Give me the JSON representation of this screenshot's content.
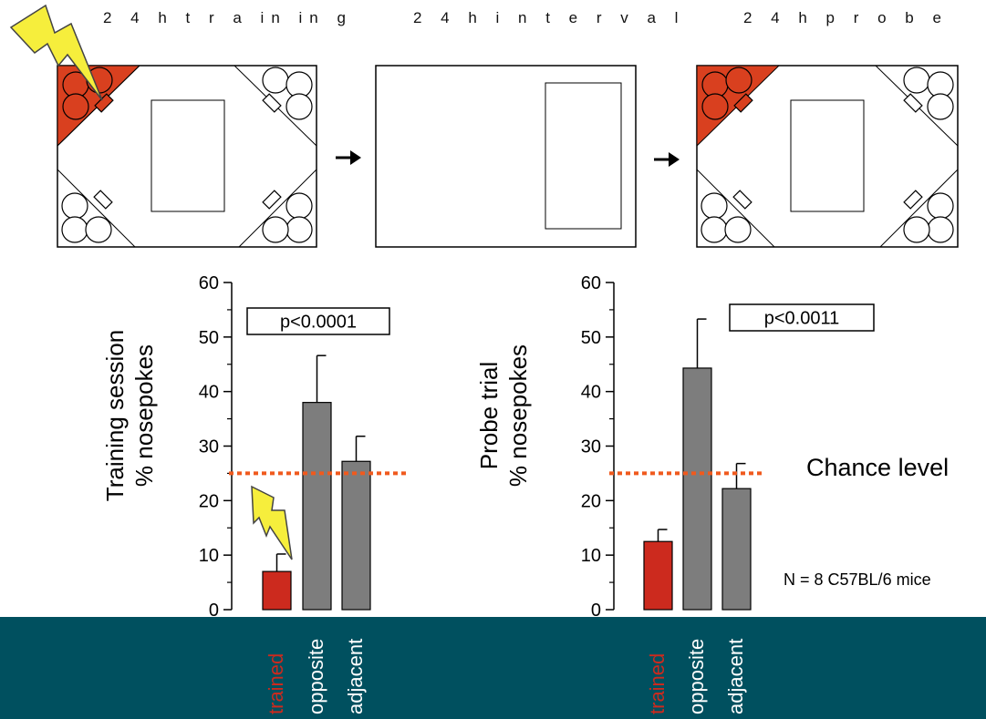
{
  "stages": {
    "training": "2 4 h  t r a in in g",
    "interval": "2 4 h  i n t e r v a l",
    "probe": "2 4 h  p r o b e"
  },
  "colors": {
    "trained": "#cc2a1e",
    "other": "#7d7d7d",
    "chance_line": "#f05a1e",
    "corner": "#d9401f",
    "bolt": "#f6ee3c",
    "footer": "#00505f"
  },
  "chart_data": [
    {
      "type": "bar",
      "title": "",
      "ylabel_line1": "Training session",
      "ylabel_line2": "% nosepokes",
      "categories": [
        "trained",
        "opposite",
        "adjacent"
      ],
      "values": [
        7,
        38,
        27.2
      ],
      "errors": [
        3.2,
        8.6,
        4.6
      ],
      "ylim": [
        0,
        60
      ],
      "yticks": [
        "0",
        "10",
        "20",
        "30",
        "40",
        "50",
        "60"
      ],
      "chance": 25,
      "pvalue": "p<0.0001"
    },
    {
      "type": "bar",
      "title": "",
      "ylabel_line1": "Probe trial",
      "ylabel_line2": "% nosepokes",
      "categories": [
        "trained",
        "opposite",
        "adjacent"
      ],
      "values": [
        12.5,
        44.3,
        22.2
      ],
      "errors": [
        2.2,
        9,
        4.6
      ],
      "ylim": [
        0,
        60
      ],
      "yticks": [
        "0",
        "10",
        "20",
        "30",
        "40",
        "50",
        "60"
      ],
      "chance": 25,
      "pvalue": "p<0.0011"
    }
  ],
  "annotations": {
    "chance_label": "Chance level",
    "n_label": "N = 8 C57BL/6 mice"
  }
}
